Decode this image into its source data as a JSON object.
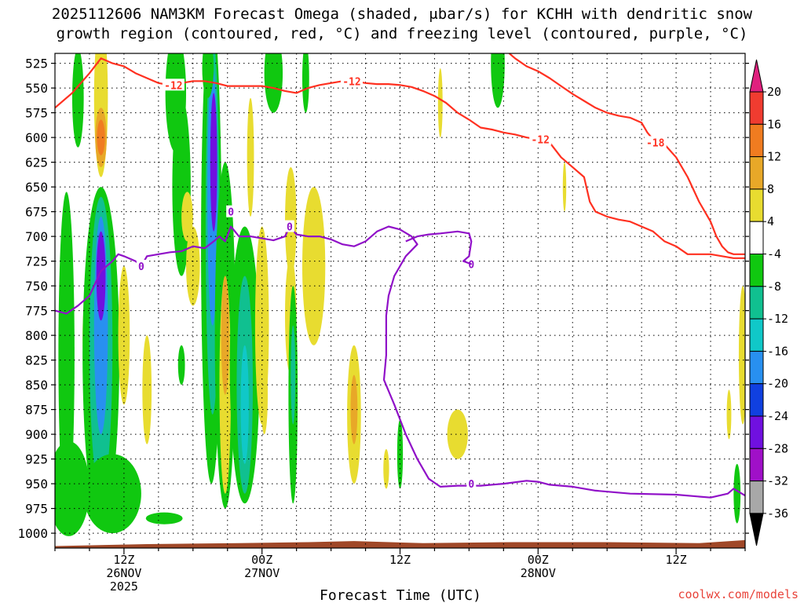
{
  "chart_data": {
    "type": "heatmap",
    "title_line1": "2025112606 NAM3KM Forecast Omega (shaded, μbar/s) for KCHH with dendritic snow",
    "title_line2": "growth region (contoured, red, °C) and freezing level (contoured, purple, °C)",
    "xlabel": "Forecast Time (UTC)",
    "x_unit": "forecast hour",
    "x_range": [
      0,
      60
    ],
    "x_ticks": [
      {
        "hour": 6,
        "label": "12Z",
        "sub1": "26NOV",
        "sub2": "2025"
      },
      {
        "hour": 18,
        "label": "00Z",
        "sub1": "27NOV",
        "sub2": ""
      },
      {
        "hour": 30,
        "label": "12Z",
        "sub1": "",
        "sub2": ""
      },
      {
        "hour": 42,
        "label": "00Z",
        "sub1": "28NOV",
        "sub2": ""
      },
      {
        "hour": 54,
        "label": "12Z",
        "sub1": "",
        "sub2": ""
      }
    ],
    "y_unit": "hPa",
    "y_range": [
      515,
      1015
    ],
    "y_ticks": [
      525,
      550,
      575,
      600,
      625,
      650,
      675,
      700,
      725,
      750,
      775,
      800,
      825,
      850,
      875,
      900,
      925,
      950,
      975,
      1000
    ],
    "colorbar": {
      "labels": [
        "20",
        "16",
        "12",
        "8",
        "4",
        "-4",
        "-8",
        "-12",
        "-16",
        "-20",
        "-24",
        "-28",
        "-32",
        "-36"
      ],
      "bins": [
        {
          "min": 20,
          "max": 24,
          "color": "#e0207e"
        },
        {
          "min": 16,
          "max": 20,
          "color": "#f03c30"
        },
        {
          "min": 12,
          "max": 16,
          "color": "#f07c20"
        },
        {
          "min": 8,
          "max": 12,
          "color": "#e8a828"
        },
        {
          "min": 4,
          "max": 8,
          "color": "#e8dc30"
        },
        {
          "min": -4,
          "max": 4,
          "color": "#ffffff"
        },
        {
          "min": -8,
          "max": -4,
          "color": "#10c810"
        },
        {
          "min": -12,
          "max": -8,
          "color": "#10c090"
        },
        {
          "min": -16,
          "max": -12,
          "color": "#10c8c8"
        },
        {
          "min": -20,
          "max": -16,
          "color": "#2890f0"
        },
        {
          "min": -24,
          "max": -20,
          "color": "#1040e0"
        },
        {
          "min": -28,
          "max": -24,
          "color": "#7010e0"
        },
        {
          "min": -32,
          "max": -28,
          "color": "#a010c8"
        },
        {
          "min": -36,
          "max": -32,
          "color": "#a8a8a8"
        }
      ]
    },
    "omega_features": [
      {
        "t": 1.0,
        "p": 820,
        "dt": 0.7,
        "dp": 165,
        "v": -6
      },
      {
        "t": 1.2,
        "p": 955,
        "dt": 1.8,
        "dp": 48,
        "v": -6
      },
      {
        "t": 2.0,
        "p": 560,
        "dt": 0.5,
        "dp": 50,
        "v": -6
      },
      {
        "t": 2.8,
        "p": 800,
        "dt": 0.4,
        "dp": 40,
        "v": 6
      },
      {
        "t": 4.0,
        "p": 560,
        "dt": 0.6,
        "dp": 80,
        "v": 6
      },
      {
        "t": 4.0,
        "p": 600,
        "dt": 0.5,
        "dp": 30,
        "v": 10
      },
      {
        "t": 4.0,
        "p": 600,
        "dt": 0.35,
        "dp": 18,
        "v": 14
      },
      {
        "t": 4.0,
        "p": 820,
        "dt": 1.6,
        "dp": 170,
        "v": -6
      },
      {
        "t": 4.0,
        "p": 810,
        "dt": 1.0,
        "dp": 150,
        "v": -10
      },
      {
        "t": 4.0,
        "p": 790,
        "dt": 0.6,
        "dp": 110,
        "v": -18
      },
      {
        "t": 4.0,
        "p": 740,
        "dt": 0.4,
        "dp": 45,
        "v": -26
      },
      {
        "t": 5.0,
        "p": 960,
        "dt": 2.5,
        "dp": 40,
        "v": -6
      },
      {
        "t": 6.0,
        "p": 800,
        "dt": 0.5,
        "dp": 70,
        "v": 5
      },
      {
        "t": 8.0,
        "p": 855,
        "dt": 0.4,
        "dp": 55,
        "v": 5
      },
      {
        "t": 10.5,
        "p": 555,
        "dt": 0.9,
        "dp": 60,
        "v": -6
      },
      {
        "t": 11.0,
        "p": 650,
        "dt": 0.8,
        "dp": 90,
        "v": -6
      },
      {
        "t": 11.5,
        "p": 680,
        "dt": 0.5,
        "dp": 25,
        "v": 5
      },
      {
        "t": 12.0,
        "p": 730,
        "dt": 0.6,
        "dp": 40,
        "v": 5
      },
      {
        "t": 11.0,
        "p": 830,
        "dt": 0.3,
        "dp": 20,
        "v": -6
      },
      {
        "t": 13.6,
        "p": 710,
        "dt": 0.9,
        "dp": 240,
        "v": -6
      },
      {
        "t": 13.7,
        "p": 690,
        "dt": 0.6,
        "dp": 190,
        "v": -12
      },
      {
        "t": 13.7,
        "p": 660,
        "dt": 0.45,
        "dp": 130,
        "v": -18
      },
      {
        "t": 13.8,
        "p": 625,
        "dt": 0.3,
        "dp": 70,
        "v": -26
      },
      {
        "t": 14.8,
        "p": 800,
        "dt": 0.9,
        "dp": 175,
        "v": -6
      },
      {
        "t": 14.8,
        "p": 850,
        "dt": 0.5,
        "dp": 110,
        "v": 5
      },
      {
        "t": 14.8,
        "p": 800,
        "dt": 0.35,
        "dp": 60,
        "v": 10
      },
      {
        "t": 16.5,
        "p": 830,
        "dt": 1.3,
        "dp": 140,
        "v": -6
      },
      {
        "t": 16.5,
        "p": 850,
        "dt": 0.7,
        "dp": 110,
        "v": -12
      },
      {
        "t": 16.5,
        "p": 870,
        "dt": 0.35,
        "dp": 60,
        "v": -14
      },
      {
        "t": 13.3,
        "p": 530,
        "dt": 0.5,
        "dp": 30,
        "v": -6
      },
      {
        "t": 17.0,
        "p": 620,
        "dt": 0.3,
        "dp": 60,
        "v": 5
      },
      {
        "t": 18.0,
        "p": 790,
        "dt": 0.6,
        "dp": 100,
        "v": 5
      },
      {
        "t": 18.2,
        "p": 860,
        "dt": 0.3,
        "dp": 40,
        "v": 7
      },
      {
        "t": 19.0,
        "p": 535,
        "dt": 0.8,
        "dp": 40,
        "v": -6
      },
      {
        "t": 21.8,
        "p": 540,
        "dt": 0.3,
        "dp": 35,
        "v": -6
      },
      {
        "t": 20.5,
        "p": 685,
        "dt": 0.5,
        "dp": 55,
        "v": 5
      },
      {
        "t": 20.5,
        "p": 780,
        "dt": 0.5,
        "dp": 60,
        "v": 5
      },
      {
        "t": 20.7,
        "p": 860,
        "dt": 0.4,
        "dp": 110,
        "v": -6
      },
      {
        "t": 20.7,
        "p": 840,
        "dt": 0.2,
        "dp": 50,
        "v": -10
      },
      {
        "t": 22.5,
        "p": 730,
        "dt": 1.0,
        "dp": 80,
        "v": 5
      },
      {
        "t": 26.0,
        "p": 880,
        "dt": 0.6,
        "dp": 70,
        "v": 5
      },
      {
        "t": 26.0,
        "p": 875,
        "dt": 0.3,
        "dp": 35,
        "v": 9
      },
      {
        "t": 28.8,
        "p": 935,
        "dt": 0.25,
        "dp": 20,
        "v": 5
      },
      {
        "t": 30.0,
        "p": 920,
        "dt": 0.25,
        "dp": 35,
        "v": -6
      },
      {
        "t": 33.5,
        "p": 565,
        "dt": 0.2,
        "dp": 35,
        "v": 5
      },
      {
        "t": 35.0,
        "p": 900,
        "dt": 0.9,
        "dp": 25,
        "v": 5
      },
      {
        "t": 38.5,
        "p": 525,
        "dt": 0.6,
        "dp": 45,
        "v": -6
      },
      {
        "t": 44.3,
        "p": 650,
        "dt": 0.15,
        "dp": 25,
        "v": 5
      },
      {
        "t": 58.6,
        "p": 880,
        "dt": 0.2,
        "dp": 25,
        "v": 5
      },
      {
        "t": 59.3,
        "p": 960,
        "dt": 0.3,
        "dp": 30,
        "v": -6
      },
      {
        "t": 59.8,
        "p": 820,
        "dt": 0.35,
        "dp": 70,
        "v": 5
      },
      {
        "t": 9.5,
        "p": 985,
        "dt": 1.6,
        "dp": 6,
        "v": -6
      }
    ],
    "dendritic_contours": [
      {
        "label": "-12",
        "color": "#ff3020",
        "label_points": [
          [
            10.3,
            547
          ],
          [
            25.8,
            543
          ],
          [
            42.2,
            602
          ]
        ],
        "points": [
          [
            0,
            570
          ],
          [
            1.5,
            555
          ],
          [
            3,
            535
          ],
          [
            4,
            520
          ],
          [
            5,
            525
          ],
          [
            6,
            528
          ],
          [
            7,
            535
          ],
          [
            8,
            540
          ],
          [
            9,
            545
          ],
          [
            10,
            547
          ],
          [
            11,
            545
          ],
          [
            12,
            543
          ],
          [
            13,
            543
          ],
          [
            14,
            545
          ],
          [
            15,
            548
          ],
          [
            16,
            548
          ],
          [
            17,
            548
          ],
          [
            18,
            548
          ],
          [
            19,
            550
          ],
          [
            20,
            553
          ],
          [
            21,
            555
          ],
          [
            22,
            550
          ],
          [
            23,
            547
          ],
          [
            24,
            545
          ],
          [
            25,
            543
          ],
          [
            26,
            543
          ],
          [
            27,
            545
          ],
          [
            28,
            546
          ],
          [
            29,
            546
          ],
          [
            30,
            547
          ],
          [
            31,
            549
          ],
          [
            32,
            553
          ],
          [
            33,
            558
          ],
          [
            34,
            565
          ],
          [
            35,
            575
          ],
          [
            36,
            582
          ],
          [
            37,
            590
          ],
          [
            38,
            592
          ],
          [
            39,
            595
          ],
          [
            40,
            597
          ],
          [
            41,
            600
          ],
          [
            42,
            602
          ],
          [
            43,
            605
          ],
          [
            44,
            620
          ],
          [
            45,
            630
          ],
          [
            46,
            640
          ],
          [
            46.5,
            665
          ],
          [
            47,
            675
          ],
          [
            48,
            680
          ],
          [
            49,
            683
          ],
          [
            50,
            685
          ],
          [
            51,
            690
          ],
          [
            52,
            695
          ],
          [
            53,
            705
          ],
          [
            54,
            710
          ],
          [
            55,
            718
          ],
          [
            56,
            718
          ],
          [
            57,
            718
          ],
          [
            58,
            720
          ],
          [
            59,
            722
          ],
          [
            60,
            722
          ]
        ]
      },
      {
        "label": "-18",
        "color": "#ff3020",
        "label_points": [
          [
            52.2,
            605
          ]
        ],
        "points": [
          [
            39.5,
            515
          ],
          [
            40,
            520
          ],
          [
            41,
            528
          ],
          [
            42,
            533
          ],
          [
            43,
            540
          ],
          [
            44,
            548
          ],
          [
            45,
            556
          ],
          [
            46,
            563
          ],
          [
            47,
            570
          ],
          [
            48,
            575
          ],
          [
            49,
            578
          ],
          [
            50,
            580
          ],
          [
            51,
            585
          ],
          [
            51.5,
            595
          ],
          [
            52,
            602
          ],
          [
            53,
            607
          ],
          [
            54,
            620
          ],
          [
            55,
            640
          ],
          [
            56,
            665
          ],
          [
            57,
            685
          ],
          [
            57.5,
            700
          ],
          [
            58,
            710
          ],
          [
            58.5,
            716
          ],
          [
            59,
            718
          ],
          [
            60,
            718
          ]
        ]
      }
    ],
    "freezing_level_contours": [
      {
        "label": "0",
        "color": "#9010c8",
        "label_points": [
          [
            7.5,
            730
          ],
          [
            15.3,
            675
          ],
          [
            20.4,
            690
          ],
          [
            36.2,
            728
          ],
          [
            36.2,
            950
          ]
        ],
        "points": [
          [
            0,
            775
          ],
          [
            1,
            778
          ],
          [
            2,
            770
          ],
          [
            3,
            760
          ],
          [
            4,
            735
          ],
          [
            5,
            725
          ],
          [
            5.5,
            718
          ],
          [
            6,
            720
          ],
          [
            7,
            725
          ],
          [
            7.5,
            730
          ],
          [
            8,
            720
          ],
          [
            9,
            718
          ],
          [
            10,
            716
          ],
          [
            11,
            715
          ],
          [
            12,
            710
          ],
          [
            13,
            712
          ],
          [
            13.8,
            705
          ],
          [
            14.3,
            700
          ],
          [
            14.8,
            705
          ],
          [
            15.3,
            690
          ],
          [
            16,
            700
          ],
          [
            17,
            700
          ],
          [
            18,
            702
          ],
          [
            19,
            704
          ],
          [
            20,
            700
          ],
          [
            20.4,
            690
          ],
          [
            21,
            698
          ],
          [
            22,
            700
          ],
          [
            23,
            700
          ],
          [
            24,
            703
          ],
          [
            25,
            708
          ],
          [
            26,
            710
          ],
          [
            27,
            705
          ],
          [
            28,
            695
          ],
          [
            29,
            690
          ],
          [
            30,
            693
          ],
          [
            31,
            700
          ],
          [
            31.5,
            708
          ],
          [
            30.5,
            720
          ],
          [
            29.5,
            740
          ],
          [
            29,
            760
          ],
          [
            28.8,
            780
          ],
          [
            28.8,
            800
          ],
          [
            28.8,
            820
          ],
          [
            28.6,
            845
          ],
          [
            29.5,
            870
          ],
          [
            30.5,
            900
          ],
          [
            31.5,
            925
          ],
          [
            32.5,
            945
          ],
          [
            33.5,
            953
          ],
          [
            35,
            952
          ],
          [
            37,
            952
          ],
          [
            39,
            950
          ],
          [
            41,
            947
          ],
          [
            42,
            948
          ],
          [
            43,
            951
          ],
          [
            45,
            953
          ],
          [
            47,
            957
          ],
          [
            50,
            960
          ],
          [
            54,
            961
          ],
          [
            57,
            964
          ],
          [
            58.5,
            960
          ],
          [
            59,
            955
          ],
          [
            60,
            962
          ]
        ]
      },
      {
        "label": "0",
        "color": "#9010c8",
        "label_points": [],
        "points": [
          [
            30.5,
            705
          ],
          [
            31.5,
            700
          ],
          [
            32.5,
            698
          ],
          [
            33.5,
            697
          ],
          [
            35,
            695
          ],
          [
            36,
            697
          ],
          [
            36.2,
            705
          ],
          [
            36,
            720
          ],
          [
            35.5,
            725
          ],
          [
            36.2,
            728
          ]
        ]
      }
    ],
    "terrain_color": "#a04828",
    "surface_pressure": [
      [
        0,
        1013
      ],
      [
        8,
        1011
      ],
      [
        16,
        1010
      ],
      [
        22,
        1009
      ],
      [
        26,
        1008
      ],
      [
        32,
        1010
      ],
      [
        40,
        1009
      ],
      [
        48,
        1009
      ],
      [
        56,
        1010
      ],
      [
        60,
        1007
      ]
    ]
  },
  "credit": "coolwx.com/models"
}
